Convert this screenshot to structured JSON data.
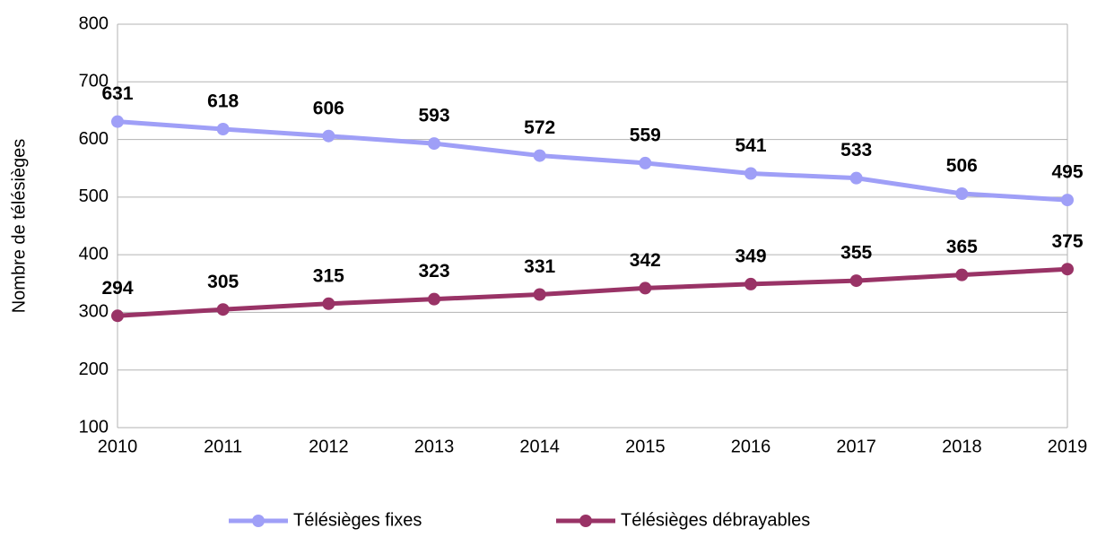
{
  "chart_data": {
    "type": "line",
    "y_label": "Nombre de télésièges",
    "categories": [
      "2010",
      "2011",
      "2012",
      "2013",
      "2014",
      "2015",
      "2016",
      "2017",
      "2018",
      "2019"
    ],
    "series": [
      {
        "name": "Télésièges fixes",
        "color": "#9f9ff7",
        "values": [
          631,
          618,
          606,
          593,
          572,
          559,
          541,
          533,
          506,
          495
        ]
      },
      {
        "name": "Télésièges débrayables",
        "color": "#993366",
        "values": [
          294,
          305,
          315,
          323,
          331,
          342,
          349,
          355,
          365,
          375
        ]
      }
    ],
    "ylim": [
      100,
      800
    ],
    "yticks": [
      100,
      200,
      300,
      400,
      500,
      600,
      700,
      800
    ],
    "grid": true,
    "legend": "bottom"
  }
}
